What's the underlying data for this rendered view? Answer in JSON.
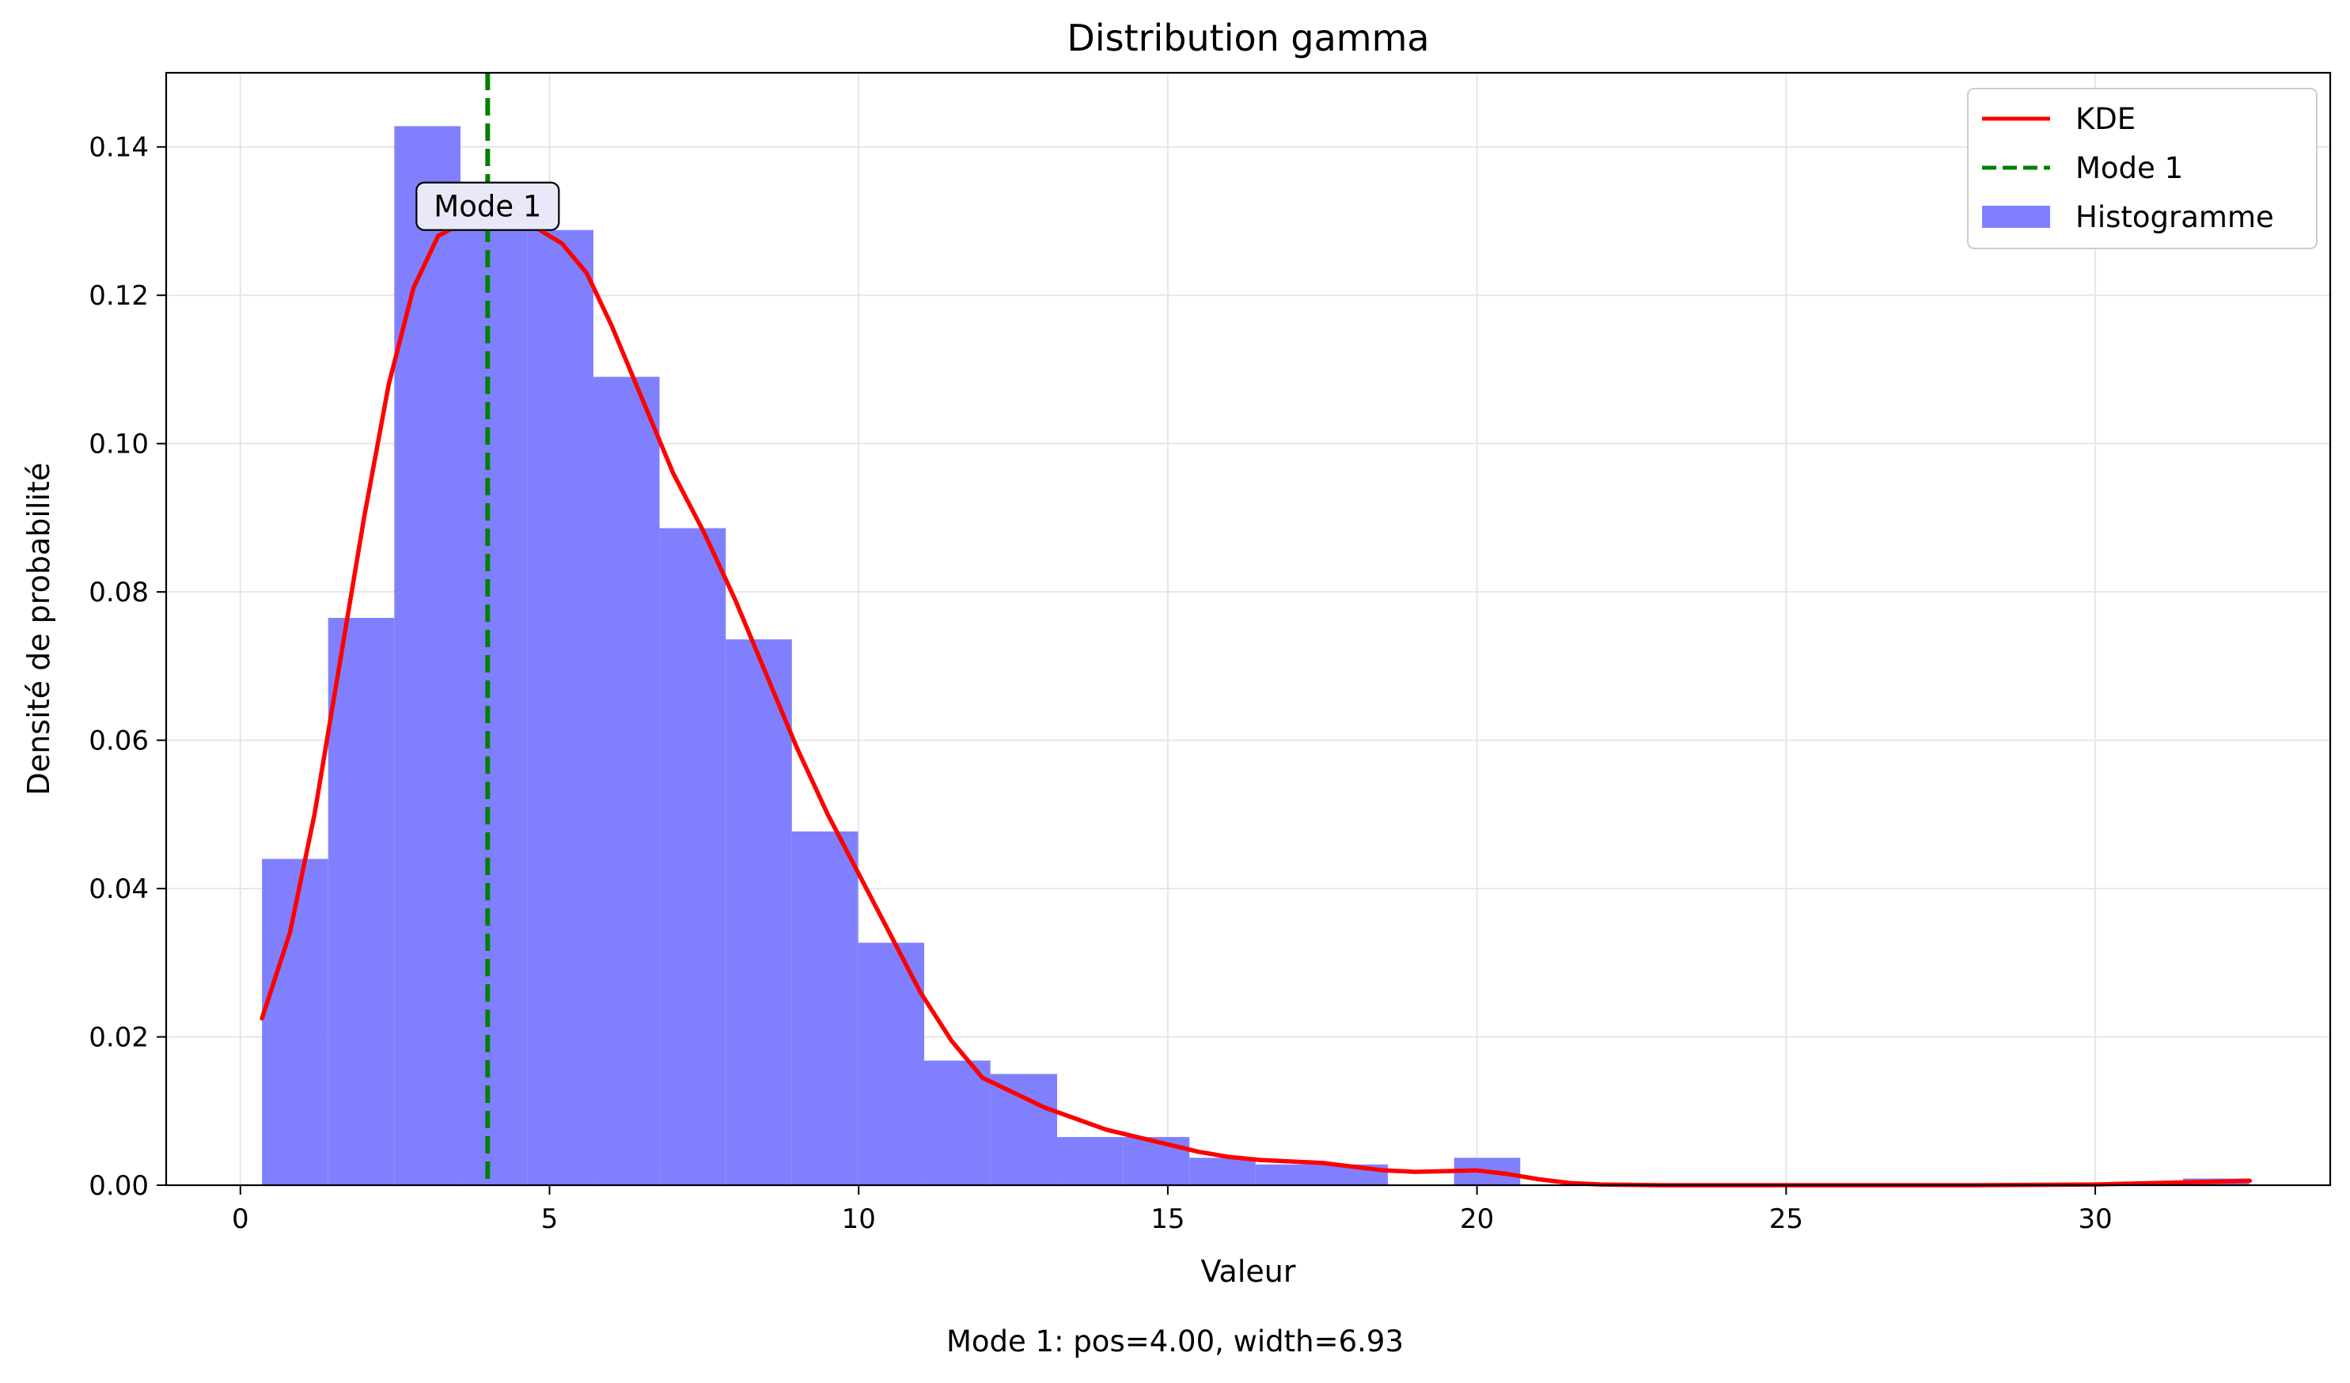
{
  "chart_data": {
    "type": "bar",
    "title": "Distribution gamma",
    "xlabel": "Valeur",
    "ylabel": "Densité de probabilité",
    "xlim": [
      -1.2,
      33.8
    ],
    "ylim": [
      0,
      0.15
    ],
    "xticks": [
      0,
      5,
      10,
      15,
      20,
      25,
      30
    ],
    "yticks": [
      0.0,
      0.02,
      0.04,
      0.06,
      0.08,
      0.1,
      0.12,
      0.14
    ],
    "grid": true,
    "legend_position": "top-right",
    "histogram": {
      "name": "Histogramme",
      "color": "#8080ff",
      "bins": [
        {
          "x0": 0.35,
          "x1": 1.42,
          "value": 0.044
        },
        {
          "x0": 1.42,
          "x1": 2.49,
          "value": 0.0765
        },
        {
          "x0": 2.49,
          "x1": 3.56,
          "value": 0.1428
        },
        {
          "x0": 3.56,
          "x1": 4.64,
          "value": 0.1307
        },
        {
          "x0": 4.64,
          "x1": 5.71,
          "value": 0.1288
        },
        {
          "x0": 5.71,
          "x1": 6.78,
          "value": 0.109
        },
        {
          "x0": 6.78,
          "x1": 7.85,
          "value": 0.0886
        },
        {
          "x0": 7.85,
          "x1": 8.92,
          "value": 0.0736
        },
        {
          "x0": 8.92,
          "x1": 9.99,
          "value": 0.0477
        },
        {
          "x0": 9.99,
          "x1": 11.06,
          "value": 0.0327
        },
        {
          "x0": 11.06,
          "x1": 12.13,
          "value": 0.0168
        },
        {
          "x0": 12.13,
          "x1": 13.21,
          "value": 0.015
        },
        {
          "x0": 13.21,
          "x1": 14.28,
          "value": 0.0065
        },
        {
          "x0": 14.28,
          "x1": 15.35,
          "value": 0.0065
        },
        {
          "x0": 15.35,
          "x1": 16.42,
          "value": 0.0037
        },
        {
          "x0": 16.42,
          "x1": 17.49,
          "value": 0.0028
        },
        {
          "x0": 17.49,
          "x1": 18.56,
          "value": 0.0028
        },
        {
          "x0": 18.56,
          "x1": 19.63,
          "value": 0.0
        },
        {
          "x0": 19.63,
          "x1": 20.7,
          "value": 0.0037
        },
        {
          "x0": 20.7,
          "x1": 21.78,
          "value": 0.0
        },
        {
          "x0": 21.78,
          "x1": 22.85,
          "value": 0.0
        },
        {
          "x0": 22.85,
          "x1": 23.92,
          "value": 0.0
        },
        {
          "x0": 23.92,
          "x1": 24.99,
          "value": 0.0
        },
        {
          "x0": 24.99,
          "x1": 26.06,
          "value": 0.0
        },
        {
          "x0": 26.06,
          "x1": 27.13,
          "value": 0.0
        },
        {
          "x0": 27.13,
          "x1": 28.2,
          "value": 0.0
        },
        {
          "x0": 28.2,
          "x1": 29.27,
          "value": 0.0
        },
        {
          "x0": 29.27,
          "x1": 30.35,
          "value": 0.0
        },
        {
          "x0": 30.35,
          "x1": 31.42,
          "value": 0.0
        },
        {
          "x0": 31.42,
          "x1": 32.49,
          "value": 0.0009
        }
      ]
    },
    "kde": {
      "name": "KDE",
      "color": "#ff0000",
      "x": [
        0.35,
        0.8,
        1.2,
        1.6,
        2.0,
        2.4,
        2.8,
        3.2,
        3.6,
        4.0,
        4.4,
        4.8,
        5.2,
        5.6,
        6.0,
        6.5,
        7.0,
        7.5,
        8.0,
        8.5,
        9.0,
        9.5,
        10.0,
        10.5,
        11.0,
        11.5,
        12.0,
        12.5,
        13.0,
        13.5,
        14.0,
        14.5,
        15.0,
        15.5,
        16.0,
        16.5,
        17.0,
        17.5,
        18.0,
        18.5,
        19.0,
        19.5,
        20.0,
        20.5,
        21.0,
        21.5,
        22.0,
        23.0,
        25.0,
        28.0,
        30.0,
        31.5,
        32.5
      ],
      "y": [
        0.0225,
        0.034,
        0.05,
        0.07,
        0.09,
        0.108,
        0.121,
        0.128,
        0.1298,
        0.1302,
        0.1298,
        0.129,
        0.127,
        0.123,
        0.116,
        0.106,
        0.096,
        0.088,
        0.079,
        0.069,
        0.059,
        0.05,
        0.042,
        0.034,
        0.026,
        0.0195,
        0.0145,
        0.0125,
        0.0105,
        0.009,
        0.0075,
        0.0065,
        0.0055,
        0.0045,
        0.0038,
        0.0034,
        0.0032,
        0.003,
        0.0025,
        0.002,
        0.0018,
        0.0019,
        0.002,
        0.0015,
        0.0008,
        0.0003,
        0.0001,
        0.0,
        0.0,
        0.0,
        0.0001,
        0.0004,
        0.0006
      ]
    },
    "mode_line": {
      "name": "Mode 1",
      "color": "#008000",
      "x": 4.0,
      "annotation": "Mode 1",
      "annotation_y": 0.132
    },
    "caption": "Mode 1: pos=4.00, width=6.93"
  }
}
